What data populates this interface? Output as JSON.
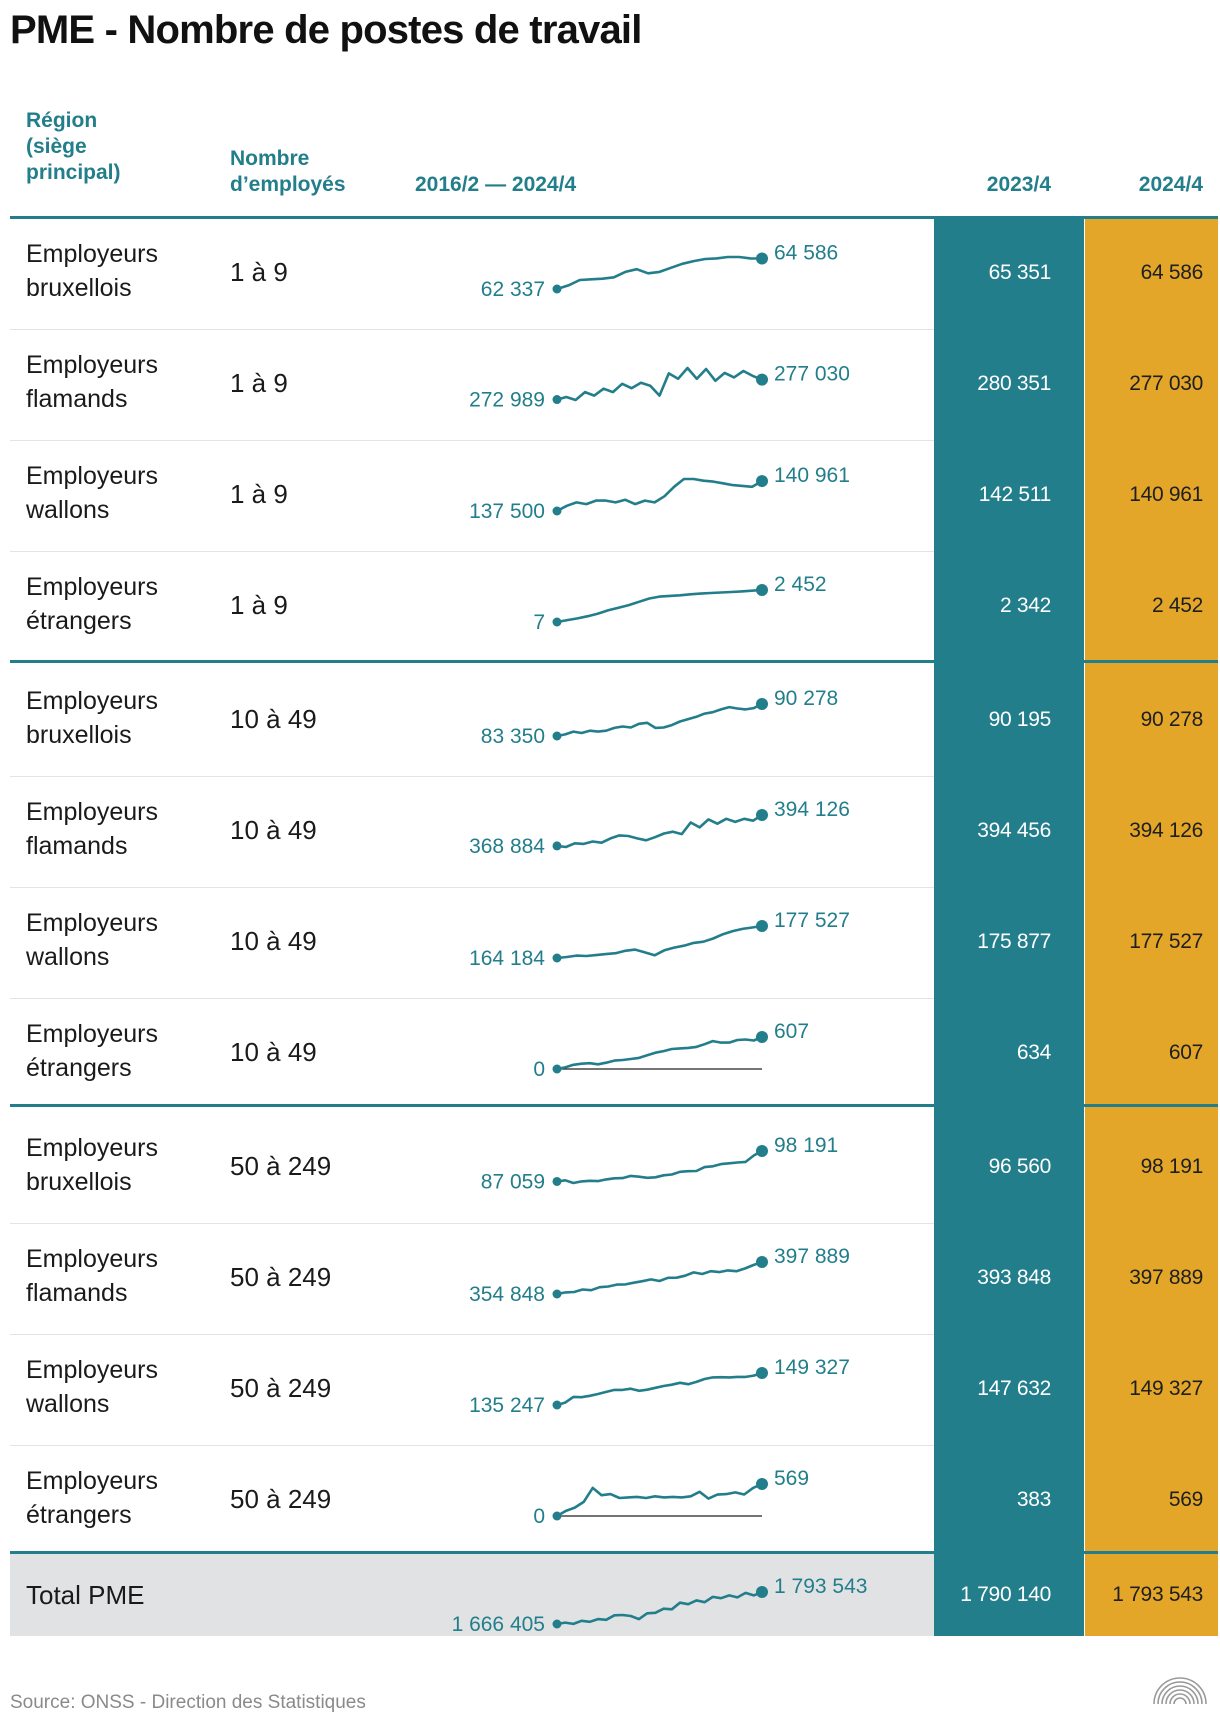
{
  "title": "PME - Nombre de postes de travail",
  "headers": {
    "region_lines": [
      "Région",
      "(siège",
      "principal)"
    ],
    "size_lines": [
      "Nombre",
      "d’employés"
    ],
    "trend": "2016/2 — 2024/4",
    "col_2023": "2023/4",
    "col_2024": "2024/4"
  },
  "rows": [
    {
      "region_l1": "Employeurs",
      "region_l2": "bruxellois",
      "size": "1 à 9",
      "start_label": "62 337",
      "end_label": "64 586",
      "v2023": "65 351",
      "v2024": "64 586"
    },
    {
      "region_l1": "Employeurs",
      "region_l2": "flamands",
      "size": "1 à 9",
      "start_label": "272 989",
      "end_label": "277 030",
      "v2023": "280 351",
      "v2024": "277 030"
    },
    {
      "region_l1": "Employeurs",
      "region_l2": "wallons",
      "size": "1 à 9",
      "start_label": "137 500",
      "end_label": "140 961",
      "v2023": "142 511",
      "v2024": "140 961"
    },
    {
      "region_l1": "Employeurs",
      "region_l2": "étrangers",
      "size": "1 à 9",
      "start_label": "7",
      "end_label": "2 452",
      "v2023": "2 342",
      "v2024": "2 452"
    },
    {
      "region_l1": "Employeurs",
      "region_l2": "bruxellois",
      "size": "10 à 49",
      "start_label": "83 350",
      "end_label": "90 278",
      "v2023": "90 195",
      "v2024": "90 278"
    },
    {
      "region_l1": "Employeurs",
      "region_l2": "flamands",
      "size": "10 à 49",
      "start_label": "368 884",
      "end_label": "394 126",
      "v2023": "394 456",
      "v2024": "394 126"
    },
    {
      "region_l1": "Employeurs",
      "region_l2": "wallons",
      "size": "10 à 49",
      "start_label": "164 184",
      "end_label": "177 527",
      "v2023": "175 877",
      "v2024": "177 527"
    },
    {
      "region_l1": "Employeurs",
      "region_l2": "étrangers",
      "size": "10 à 49",
      "start_label": "0",
      "end_label": "607",
      "v2023": "634",
      "v2024": "607"
    },
    {
      "region_l1": "Employeurs",
      "region_l2": "bruxellois",
      "size": "50 à 249",
      "start_label": "87 059",
      "end_label": "98 191",
      "v2023": "96 560",
      "v2024": "98 191"
    },
    {
      "region_l1": "Employeurs",
      "region_l2": "flamands",
      "size": "50 à 249",
      "start_label": "354 848",
      "end_label": "397 889",
      "v2023": "393 848",
      "v2024": "397 889"
    },
    {
      "region_l1": "Employeurs",
      "region_l2": "wallons",
      "size": "50 à 249",
      "start_label": "135 247",
      "end_label": "149 327",
      "v2023": "147 632",
      "v2024": "149 327"
    },
    {
      "region_l1": "Employeurs",
      "region_l2": "étrangers",
      "size": "50 à 249",
      "start_label": "0",
      "end_label": "569",
      "v2023": "383",
      "v2024": "569"
    }
  ],
  "total": {
    "label": "Total PME",
    "start_label": "1 666 405",
    "end_label": "1 793 543",
    "v2023": "1 790 140",
    "v2024": "1 793 543"
  },
  "source": "Source: ONSS - Direction des Statistiques",
  "colors": {
    "teal": "#237e8b",
    "gold": "#e3a628",
    "total_bg": "#e1e2e4",
    "line": "#237e8b"
  },
  "chart_data": {
    "type": "line",
    "x_range": [
      "2016/2",
      "2024/4"
    ],
    "series": [
      {
        "name": "Employeurs bruxellois 1 à 9",
        "values": [
          62337,
          62600,
          63000,
          63050,
          63100,
          63200,
          63600,
          63800,
          63500,
          63600,
          63900,
          64200,
          64400,
          64550,
          64600,
          64700,
          64700,
          64600,
          64586
        ]
      },
      {
        "name": "Employeurs flamands 1 à 9",
        "values": [
          272989,
          273500,
          272900,
          274500,
          273800,
          275200,
          274500,
          276200,
          275300,
          276400,
          275800,
          273800,
          278300,
          277200,
          279400,
          277200,
          279200,
          276800,
          278400,
          277500,
          278800,
          277800,
          277030
        ]
      },
      {
        "name": "Employeurs wallons 1 à 9",
        "values": [
          137500,
          138100,
          138500,
          138300,
          138700,
          138700,
          138500,
          138800,
          138300,
          138700,
          138500,
          139200,
          140300,
          141200,
          141200,
          141000,
          140900,
          140700,
          140500,
          140400,
          140300,
          140961
        ]
      },
      {
        "name": "Employeurs étrangers 1 à 9",
        "values": [
          7,
          150,
          280,
          450,
          650,
          900,
          1100,
          1300,
          1550,
          1800,
          1950,
          2000,
          2050,
          2120,
          2180,
          2220,
          2260,
          2300,
          2342,
          2400,
          2452
        ]
      },
      {
        "name": "Employeurs bruxellois 10 à 49",
        "values": [
          83350,
          83700,
          84300,
          84000,
          84500,
          84300,
          84500,
          85100,
          85400,
          85200,
          86000,
          86200,
          85100,
          85200,
          85700,
          86500,
          87000,
          87500,
          88200,
          88500,
          89100,
          89600,
          89300,
          89100,
          89400,
          90278
        ]
      },
      {
        "name": "Employeurs flamands 10 à 49",
        "values": [
          368884,
          368000,
          371000,
          370500,
          372500,
          371500,
          375000,
          377500,
          377000,
          375000,
          373500,
          376000,
          379000,
          380500,
          378500,
          388000,
          384000,
          390500,
          387000,
          391000,
          388500,
          391000,
          389500,
          394126
        ]
      },
      {
        "name": "Employeurs wallons 10 à 49",
        "values": [
          164184,
          164600,
          165200,
          165000,
          165400,
          165800,
          166200,
          167200,
          167700,
          166500,
          165300,
          167400,
          168500,
          169300,
          170500,
          171000,
          172300,
          174100,
          175400,
          176300,
          176900,
          177527
        ]
      },
      {
        "name": "Employeurs étrangers 10 à 49",
        "values": [
          0,
          30,
          80,
          100,
          110,
          90,
          120,
          160,
          170,
          190,
          210,
          260,
          310,
          340,
          380,
          390,
          400,
          420,
          470,
          530,
          500,
          500,
          550,
          560,
          540,
          607
        ]
      },
      {
        "name": "Employeurs bruxellois 50 à 249",
        "values": [
          87059,
          87500,
          86500,
          87100,
          87300,
          87200,
          87800,
          88200,
          88300,
          89100,
          88800,
          88400,
          88600,
          89300,
          89600,
          90600,
          90800,
          90900,
          92300,
          92600,
          93400,
          93700,
          94000,
          94200,
          96560,
          98191
        ]
      },
      {
        "name": "Employeurs flamands 50 à 249",
        "values": [
          354848,
          357000,
          357600,
          360900,
          360000,
          364000,
          365000,
          367500,
          367700,
          370000,
          372000,
          374500,
          372300,
          376700,
          376800,
          379500,
          383900,
          381700,
          385500,
          384300,
          386600,
          385500,
          389200,
          393848,
          397889
        ]
      },
      {
        "name": "Employeurs wallons 50 à 249",
        "values": [
          135247,
          136300,
          138800,
          138700,
          139300,
          140100,
          141000,
          141900,
          141900,
          142400,
          141500,
          142000,
          142800,
          143600,
          144200,
          145000,
          144400,
          145400,
          146700,
          147400,
          147500,
          147400,
          147600,
          147632,
          148200,
          149327
        ]
      },
      {
        "name": "Employeurs étrangers 50 à 249",
        "values": [
          0,
          90,
          150,
          250,
          500,
          370,
          390,
          320,
          330,
          340,
          320,
          350,
          330,
          340,
          330,
          350,
          430,
          310,
          380,
          390,
          420,
          383,
          500,
          569
        ]
      },
      {
        "name": "Total PME",
        "values": [
          1666405,
          1672000,
          1667000,
          1679000,
          1675000,
          1686000,
          1683000,
          1701000,
          1702000,
          1698000,
          1686000,
          1709000,
          1711000,
          1727000,
          1725000,
          1751000,
          1745000,
          1760000,
          1753000,
          1774000,
          1769000,
          1780000,
          1772000,
          1790140,
          1780000,
          1793543
        ]
      }
    ]
  }
}
